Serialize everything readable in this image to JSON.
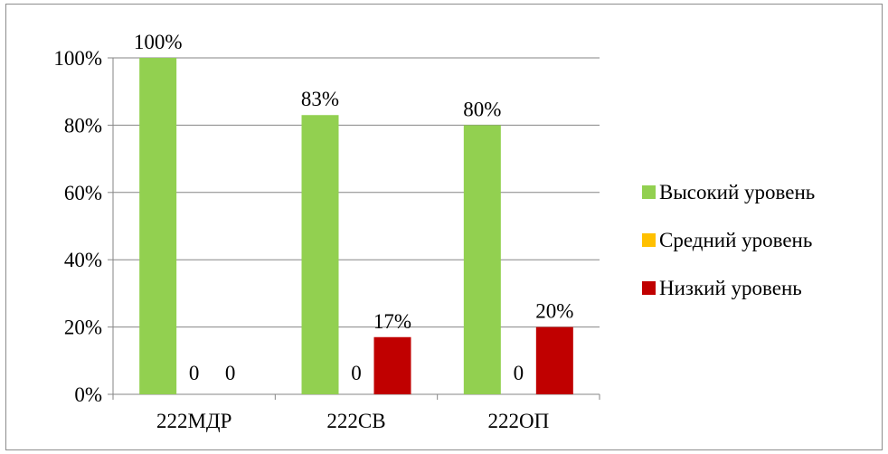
{
  "chart_data": {
    "type": "bar",
    "categories": [
      "222МДР",
      "222СВ",
      "222ОП"
    ],
    "series": [
      {
        "name": "Высокий уровень",
        "values": [
          100,
          83,
          80
        ],
        "labels": [
          "100%",
          "83%",
          "80%"
        ],
        "color": "#92d050"
      },
      {
        "name": "Средний уровень",
        "values": [
          0,
          0,
          0
        ],
        "labels": [
          "0",
          "0",
          "0"
        ],
        "color": "#ffc000"
      },
      {
        "name": "Низкий уровень",
        "values": [
          0,
          17,
          20
        ],
        "labels": [
          "0",
          "17%",
          "20%"
        ],
        "color": "#c00000"
      }
    ],
    "yticks": [
      "0%",
      "20%",
      "40%",
      "60%",
      "80%",
      "100%"
    ],
    "ylim": [
      0,
      100
    ],
    "grid": true,
    "legend_position": "right",
    "title": "",
    "xlabel": "",
    "ylabel": ""
  }
}
